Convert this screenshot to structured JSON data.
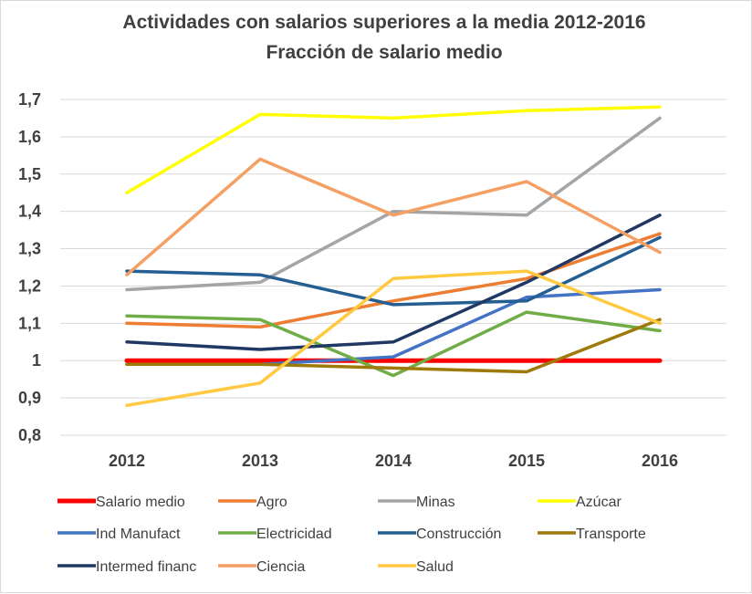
{
  "chart_data": {
    "type": "line",
    "title": "Actividades  con salarios superiores a la media 2012-2016",
    "subtitle": "Fracción de salario medio",
    "xlabel": "",
    "ylabel": "",
    "categories": [
      "2012",
      "2013",
      "2014",
      "2015",
      "2016"
    ],
    "ylim": [
      0.8,
      1.7
    ],
    "yticks": [
      0.8,
      0.9,
      1.0,
      1.1,
      1.2,
      1.3,
      1.4,
      1.5,
      1.6,
      1.7
    ],
    "ytick_labels": [
      "0,8",
      "0,9",
      "1",
      "1,1",
      "1,2",
      "1,3",
      "1,4",
      "1,5",
      "1,6",
      "1,7"
    ],
    "grid": true,
    "legend_position": "bottom",
    "series": [
      {
        "name": "Salario medio",
        "color": "#ff0000",
        "values": [
          1.0,
          1.0,
          1.0,
          1.0,
          1.0
        ]
      },
      {
        "name": "Agro",
        "color": "#ed7d31",
        "values": [
          1.1,
          1.09,
          1.16,
          1.22,
          1.34
        ]
      },
      {
        "name": "Minas",
        "color": "#a5a5a5",
        "values": [
          1.19,
          1.21,
          1.4,
          1.39,
          1.65
        ]
      },
      {
        "name": "Azúcar",
        "color": "#ffff00",
        "values": [
          1.45,
          1.66,
          1.65,
          1.67,
          1.68
        ]
      },
      {
        "name": "Ind Manufact",
        "color": "#4472c4",
        "values": [
          0.99,
          0.99,
          1.01,
          1.17,
          1.19
        ]
      },
      {
        "name": "Electricidad",
        "color": "#70ad47",
        "values": [
          1.12,
          1.11,
          0.96,
          1.13,
          1.08
        ]
      },
      {
        "name": "Construcción",
        "color": "#255e91",
        "values": [
          1.24,
          1.23,
          1.15,
          1.16,
          1.33
        ]
      },
      {
        "name": "Transporte",
        "color": "#9e7a0a",
        "values": [
          0.99,
          0.99,
          0.98,
          0.97,
          1.11
        ]
      },
      {
        "name": "Intermed financ",
        "color": "#203864",
        "values": [
          1.05,
          1.03,
          1.05,
          1.21,
          1.39
        ]
      },
      {
        "name": "Ciencia",
        "color": "#f4a064",
        "values": [
          1.23,
          1.54,
          1.39,
          1.48,
          1.29
        ]
      },
      {
        "name": "Salud",
        "color": "#ffc940",
        "values": [
          0.88,
          0.94,
          1.22,
          1.24,
          1.1
        ]
      }
    ]
  }
}
